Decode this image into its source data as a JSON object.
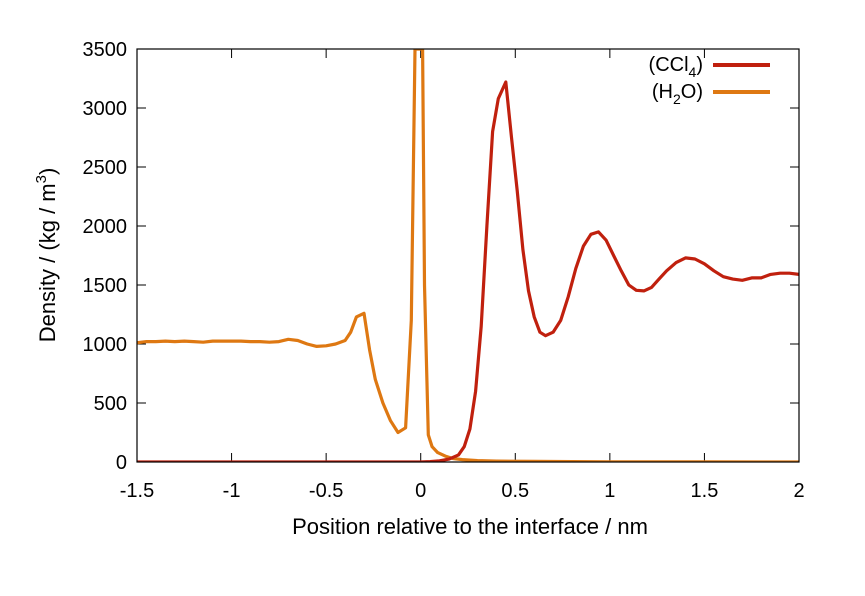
{
  "chart_data": {
    "type": "line",
    "xlabel": "Position relative to the interface / nm",
    "ylabel_main": "Density / (kg / m",
    "ylabel_sup": "3",
    "ylabel_close": ")",
    "xlim": [
      -1.5,
      2
    ],
    "ylim": [
      0,
      3500
    ],
    "x_ticks": [
      -1.5,
      -1,
      -0.5,
      0,
      0.5,
      1,
      1.5,
      2
    ],
    "x_tick_labels": [
      "-1.5",
      "-1",
      "-0.5",
      "0",
      "0.5",
      "1",
      "1.5",
      "2"
    ],
    "y_ticks": [
      0,
      500,
      1000,
      1500,
      2000,
      2500,
      3000,
      3500
    ],
    "y_tick_labels": [
      "0",
      "500",
      "1000",
      "1500",
      "2000",
      "2500",
      "3000",
      "3500"
    ],
    "grid": false,
    "legend_position": "top-right",
    "series": [
      {
        "name": "CCl4",
        "legend_main": "(CCl",
        "legend_sub": "4",
        "legend_close": ")",
        "color": "#c0200e",
        "x": [
          -1.5,
          0.0,
          0.05,
          0.1,
          0.15,
          0.2,
          0.23,
          0.26,
          0.29,
          0.32,
          0.35,
          0.38,
          0.41,
          0.45,
          0.48,
          0.51,
          0.54,
          0.57,
          0.6,
          0.63,
          0.66,
          0.7,
          0.74,
          0.78,
          0.82,
          0.86,
          0.9,
          0.94,
          0.98,
          1.02,
          1.06,
          1.1,
          1.14,
          1.18,
          1.22,
          1.26,
          1.3,
          1.35,
          1.4,
          1.45,
          1.5,
          1.55,
          1.6,
          1.65,
          1.7,
          1.75,
          1.8,
          1.85,
          1.9,
          1.95,
          2.0
        ],
        "y": [
          0,
          0,
          3,
          10,
          25,
          60,
          130,
          280,
          600,
          1150,
          2000,
          2800,
          3080,
          3220,
          2750,
          2300,
          1800,
          1450,
          1230,
          1100,
          1070,
          1100,
          1200,
          1400,
          1640,
          1830,
          1930,
          1950,
          1880,
          1750,
          1620,
          1500,
          1455,
          1450,
          1480,
          1550,
          1620,
          1690,
          1730,
          1720,
          1680,
          1620,
          1570,
          1550,
          1540,
          1560,
          1560,
          1590,
          1600,
          1600,
          1590
        ]
      },
      {
        "name": "H2O",
        "legend_main": "(H",
        "legend_sub": "2",
        "legend_close": "O)",
        "color": "#de7812",
        "x": [
          -1.5,
          -1.45,
          -1.4,
          -1.35,
          -1.3,
          -1.25,
          -1.2,
          -1.15,
          -1.1,
          -1.05,
          -1.0,
          -0.95,
          -0.9,
          -0.85,
          -0.8,
          -0.75,
          -0.7,
          -0.65,
          -0.6,
          -0.55,
          -0.5,
          -0.45,
          -0.4,
          -0.37,
          -0.34,
          -0.3,
          -0.27,
          -0.24,
          -0.2,
          -0.16,
          -0.12,
          -0.08,
          -0.05,
          -0.03,
          -0.02,
          0.01,
          0.02,
          0.04,
          0.06,
          0.09,
          0.13,
          0.17,
          0.22,
          0.3,
          0.4,
          0.6,
          0.8,
          1.0,
          1.5,
          2.0
        ],
        "y": [
          1010,
          1020,
          1020,
          1025,
          1020,
          1025,
          1020,
          1015,
          1025,
          1025,
          1025,
          1025,
          1020,
          1020,
          1015,
          1020,
          1040,
          1030,
          1000,
          980,
          985,
          1000,
          1030,
          1100,
          1230,
          1260,
          950,
          700,
          500,
          350,
          250,
          290,
          1200,
          3500,
          3500,
          3500,
          1500,
          230,
          130,
          80,
          50,
          30,
          20,
          12,
          8,
          5,
          3,
          2,
          1,
          0
        ]
      }
    ]
  }
}
